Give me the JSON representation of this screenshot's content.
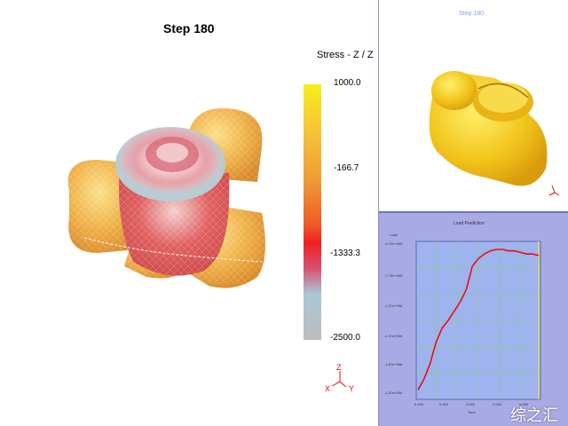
{
  "main_view": {
    "step_title": "Step  180",
    "colorbar": {
      "title": "Stress - Z / Z",
      "labels": [
        "1000.0",
        "-166.7",
        "-1333.3",
        "-2500.0"
      ],
      "colors": [
        "#f7ee1a",
        "#f5a23a",
        "#ee2a2a",
        "#a9c7d8",
        "#bdbdbd"
      ]
    },
    "triad": {
      "z": "Z",
      "x": "X",
      "y": "Y"
    }
  },
  "preview": {
    "step_title": "Step  180",
    "part_color": "#f2c51c"
  },
  "load_plot": {
    "title": "Load Prediction",
    "ylabel": "Load",
    "xlabel": "Time",
    "y_ticks": [
      "-2.27e+006",
      "-1.97e+006",
      "-1.67e+006",
      "-1.37e+006",
      "-1.07e+006",
      "-7.70e+005",
      "-4.70e+005"
    ],
    "x_ticks": [
      "0.000",
      "0.000",
      "0.000",
      "0.000",
      "0.000",
      "0.000"
    ],
    "annotation": "-1.7e+00 1.30e+00",
    "chart_data": {
      "type": "line",
      "x": [
        0,
        0.05,
        0.1,
        0.15,
        0.2,
        0.25,
        0.3,
        0.35,
        0.4,
        0.45,
        0.5,
        0.55,
        0.6,
        0.65,
        0.7,
        0.75,
        0.8,
        0.85,
        0.9,
        0.95,
        1.0
      ],
      "y": [
        0.05,
        0.12,
        0.22,
        0.36,
        0.45,
        0.5,
        0.56,
        0.62,
        0.7,
        0.85,
        0.9,
        0.93,
        0.95,
        0.96,
        0.96,
        0.95,
        0.95,
        0.94,
        0.93,
        0.93,
        0.92
      ],
      "color": "#e81010"
    }
  },
  "watermark": "综之汇"
}
